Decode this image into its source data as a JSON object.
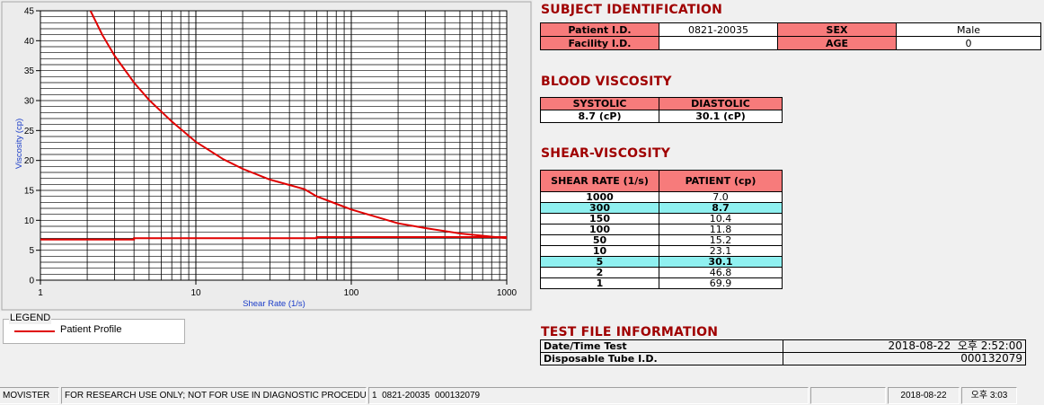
{
  "chart_data": {
    "type": "line",
    "title": "",
    "xlabel": "Shear Rate (1/s)",
    "ylabel": "Viscosity (cp)",
    "x_scale": "log",
    "xlim": [
      1,
      1000
    ],
    "ylim": [
      0,
      45
    ],
    "x_ticks": [
      1,
      10,
      100,
      1000
    ],
    "x_tick_labels": [
      "1",
      "10",
      "100",
      "1000"
    ],
    "y_ticks": [
      0,
      5,
      10,
      15,
      20,
      25,
      30,
      35,
      40,
      45
    ],
    "y_tick_labels": [
      "0",
      "5",
      "10",
      "15",
      "20",
      "25",
      "30",
      "35",
      "40",
      "45"
    ],
    "grid": true,
    "series": [
      {
        "name": "Patient Profile",
        "color": "#e00000",
        "x": [
          2.1,
          2.5,
          3,
          4,
          5,
          7,
          10,
          15,
          20,
          30,
          50,
          60,
          100,
          200,
          300,
          500,
          1000
        ],
        "y": [
          45,
          41,
          37.5,
          33,
          30.1,
          26.5,
          23.1,
          20.2,
          18.6,
          16.8,
          15.2,
          14,
          11.8,
          9.5,
          8.7,
          7.8,
          7.0
        ]
      },
      {
        "name": "",
        "color": "#e00000",
        "x": [
          1,
          4,
          4,
          60,
          60,
          1000
        ],
        "y": [
          6.8,
          6.8,
          7.0,
          7.0,
          7.2,
          7.2
        ]
      }
    ]
  },
  "legend": {
    "title": "LEGEND",
    "label": "Patient Profile",
    "color": "#e00000"
  },
  "subject": {
    "title": "SUBJECT IDENTIFICATION",
    "patient_id_label": "Patient I.D.",
    "patient_id": "0821-20035",
    "sex_label": "SEX",
    "sex": "Male",
    "facility_id_label": "Facility I.D.",
    "facility_id": "",
    "age_label": "AGE",
    "age": "0"
  },
  "blood": {
    "title": "BLOOD VISCOSITY",
    "systolic_label": "SYSTOLIC",
    "diastolic_label": "DIASTOLIC",
    "systolic": "8.7 (cP)",
    "diastolic": "30.1 (cP)"
  },
  "shear": {
    "title": "SHEAR-VISCOSITY",
    "col1": "SHEAR RATE (1/s)",
    "col2": "PATIENT (cp)",
    "rows": [
      {
        "rate": "1000",
        "value": "7.0",
        "highlight": false
      },
      {
        "rate": "300",
        "value": "8.7",
        "highlight": true
      },
      {
        "rate": "150",
        "value": "10.4",
        "highlight": false
      },
      {
        "rate": "100",
        "value": "11.8",
        "highlight": false
      },
      {
        "rate": "50",
        "value": "15.2",
        "highlight": false
      },
      {
        "rate": "10",
        "value": "23.1",
        "highlight": false
      },
      {
        "rate": "5",
        "value": "30.1",
        "highlight": true
      },
      {
        "rate": "2",
        "value": "46.8",
        "highlight": false
      },
      {
        "rate": "1",
        "value": "69.9",
        "highlight": false
      }
    ]
  },
  "test": {
    "title": "TEST FILE INFORMATION",
    "datetime_label": "Date/Time Test",
    "datetime": "2018-08-22  오후 2:52:00",
    "tube_label": "Disposable Tube I.D.",
    "tube": "000132079"
  },
  "status": {
    "app": "MOVISTER",
    "notice": "FOR RESEARCH USE ONLY; NOT FOR USE IN DIAGNOSTIC PROCEDURES",
    "file": "1  0821-20035  000132079",
    "blank": "",
    "date": "2018-08-22",
    "time": "오후 3:03"
  }
}
